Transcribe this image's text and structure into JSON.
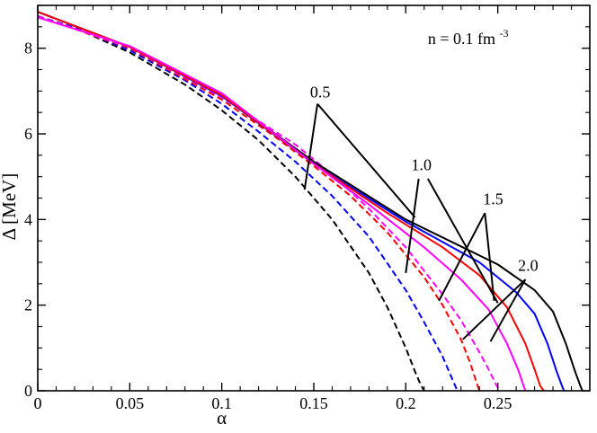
{
  "chart_data": {
    "type": "line",
    "title": "",
    "xlabel": "α",
    "ylabel": "Δ [MeV]",
    "xlim": [
      0,
      0.3
    ],
    "ylim": [
      0,
      9
    ],
    "xticks": [
      0,
      0.05,
      0.1,
      0.15,
      0.2,
      0.25
    ],
    "xtick_labels": [
      "0",
      "0.05",
      "0.1",
      "0.15",
      "0.2",
      "0.25"
    ],
    "yticks": [
      0,
      2,
      4,
      6,
      8
    ],
    "ytick_labels": [
      "0",
      "2",
      "4",
      "6",
      "8"
    ],
    "x_minor_step": 0.01,
    "y_minor_step": 0.5,
    "grid": false,
    "legend": "none",
    "annotation": {
      "text": "n = 0.1 fm",
      "superscript": "-3",
      "x": 0.212,
      "y": 8.1
    },
    "series": [
      {
        "color": "#000000",
        "dash": true,
        "x": [
          0,
          0.02,
          0.05,
          0.08,
          0.1,
          0.12,
          0.14,
          0.16,
          0.18,
          0.19,
          0.2,
          0.205,
          0.208,
          0.21
        ],
        "y": [
          8.75,
          8.48,
          7.9,
          7.15,
          6.55,
          5.85,
          5.0,
          4.0,
          2.75,
          1.95,
          1.0,
          0.45,
          0.15,
          0
        ]
      },
      {
        "color": "#0000ff",
        "dash": true,
        "x": [
          0,
          0.02,
          0.05,
          0.08,
          0.1,
          0.12,
          0.14,
          0.16,
          0.18,
          0.2,
          0.21,
          0.22,
          0.225,
          0.228
        ],
        "y": [
          8.75,
          8.48,
          7.95,
          7.25,
          6.7,
          6.05,
          5.35,
          4.55,
          3.6,
          2.35,
          1.6,
          0.8,
          0.3,
          0
        ]
      },
      {
        "color": "#ff0000",
        "dash": true,
        "x": [
          0,
          0.05,
          0.1,
          0.13,
          0.15,
          0.17,
          0.19,
          0.21,
          0.22,
          0.23,
          0.235,
          0.238,
          0.24
        ],
        "y": [
          8.75,
          8.0,
          6.8,
          5.9,
          5.25,
          4.55,
          3.7,
          2.65,
          2.0,
          1.2,
          0.65,
          0.25,
          0
        ]
      },
      {
        "color": "#ff00ff",
        "dash": true,
        "x": [
          0,
          0.05,
          0.1,
          0.14,
          0.16,
          0.18,
          0.2,
          0.22,
          0.23,
          0.24,
          0.245,
          0.249,
          0.251
        ],
        "y": [
          8.75,
          8.02,
          6.85,
          5.75,
          5.05,
          4.25,
          3.35,
          2.25,
          1.65,
          0.9,
          0.5,
          0.15,
          0
        ]
      },
      {
        "color": "#000000",
        "dash": false,
        "x": [
          0,
          0.05,
          0.1,
          0.15,
          0.2,
          0.25,
          0.27,
          0.28,
          0.287,
          0.292,
          0.295,
          0.296
        ],
        "y": [
          8.85,
          8.03,
          6.9,
          5.35,
          4.0,
          2.95,
          2.35,
          1.85,
          1.1,
          0.45,
          0.1,
          0
        ]
      },
      {
        "color": "#0000ff",
        "dash": false,
        "x": [
          0,
          0.05,
          0.1,
          0.15,
          0.2,
          0.24,
          0.26,
          0.27,
          0.277,
          0.282,
          0.285,
          0.286
        ],
        "y": [
          8.85,
          8.03,
          6.88,
          5.3,
          3.95,
          3.0,
          2.3,
          1.8,
          1.1,
          0.45,
          0.1,
          0
        ]
      },
      {
        "color": "#ff0000",
        "dash": false,
        "x": [
          0,
          0.05,
          0.1,
          0.15,
          0.19,
          0.22,
          0.24,
          0.255,
          0.265,
          0.27,
          0.273,
          0.275
        ],
        "y": [
          8.85,
          8.03,
          6.9,
          5.3,
          4.15,
          3.35,
          2.7,
          1.95,
          1.1,
          0.5,
          0.12,
          0
        ]
      },
      {
        "color": "#ff00ff",
        "dash": false,
        "x": [
          0,
          0.05,
          0.1,
          0.15,
          0.18,
          0.21,
          0.23,
          0.245,
          0.255,
          0.261,
          0.264,
          0.265
        ],
        "y": [
          8.72,
          8.05,
          6.95,
          5.3,
          4.35,
          3.35,
          2.6,
          1.9,
          1.1,
          0.5,
          0.12,
          0
        ]
      }
    ],
    "labels": [
      {
        "text": "0.5",
        "x": 0.148,
        "y": 6.85,
        "lines": [
          [
            [
              0.152,
              6.7
            ],
            [
              0.145,
              4.7
            ]
          ],
          [
            [
              0.152,
              6.7
            ],
            [
              0.205,
              4.05
            ]
          ]
        ]
      },
      {
        "text": "1.0",
        "x": 0.203,
        "y": 5.15,
        "lines": [
          [
            [
              0.207,
              4.95
            ],
            [
              0.2,
              2.75
            ]
          ],
          [
            [
              0.212,
              4.95
            ],
            [
              0.25,
              2.05
            ]
          ]
        ]
      },
      {
        "text": "1.5",
        "x": 0.242,
        "y": 4.35,
        "lines": [
          [
            [
              0.243,
              4.15
            ],
            [
              0.218,
              2.1
            ]
          ],
          [
            [
              0.243,
              4.15
            ],
            [
              0.248,
              2.1
            ]
          ]
        ]
      },
      {
        "text": "2.0",
        "x": 0.261,
        "y": 2.8,
        "lines": [
          [
            [
              0.265,
              2.6
            ],
            [
              0.231,
              1.2
            ]
          ],
          [
            [
              0.265,
              2.6
            ],
            [
              0.246,
              1.15
            ]
          ]
        ]
      }
    ]
  }
}
